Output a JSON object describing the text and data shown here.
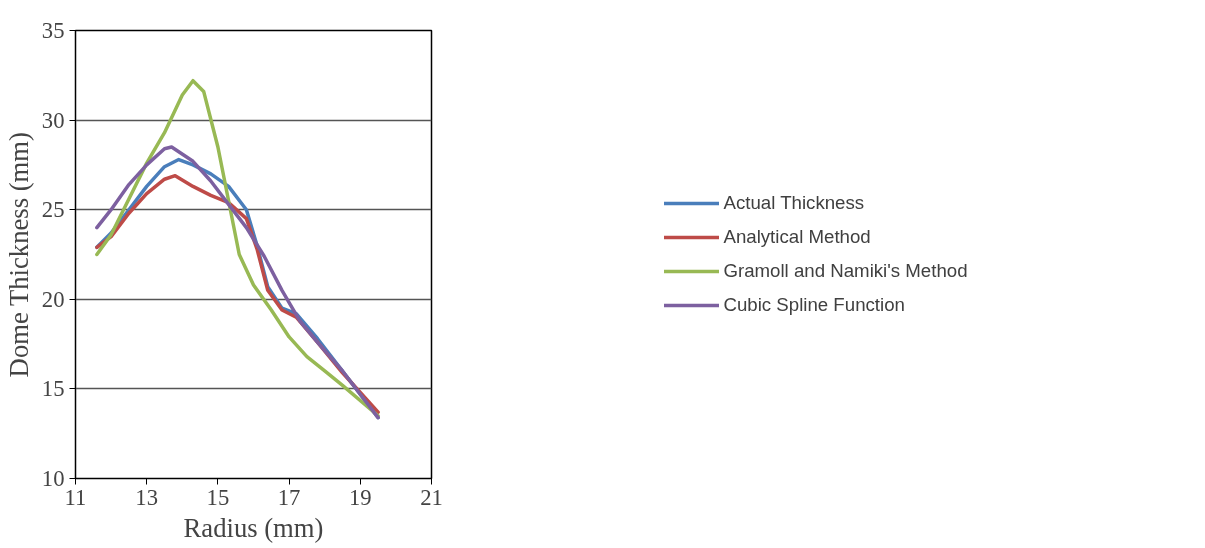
{
  "chart_data": {
    "type": "line",
    "xlabel": "Radius (mm)",
    "ylabel": "Dome Thickness (mm)",
    "xlim": [
      11,
      21
    ],
    "xticks": [
      11,
      13,
      15,
      17,
      19,
      21
    ],
    "ylim": [
      10,
      35
    ],
    "yticks": [
      10,
      15,
      20,
      25,
      30,
      35
    ],
    "grid": "y",
    "legend": "right",
    "marker": "none",
    "line_style": "solid",
    "series": [
      {
        "name": "Actual Thickness",
        "color": "#4a7ebb",
        "x": [
          11.6,
          12,
          12.5,
          13,
          13.5,
          13.9,
          14.3,
          14.8,
          15.3,
          15.8,
          16.1,
          16.4,
          16.8,
          17.2,
          17.8,
          18.5,
          19.5
        ],
        "values": [
          22.9,
          23.7,
          25,
          26.3,
          27.4,
          27.8,
          27.5,
          27,
          26.3,
          25,
          23,
          20.7,
          19.5,
          19.2,
          17.8,
          16,
          13.4
        ]
      },
      {
        "name": "Analytical Method",
        "color": "#be4b48",
        "x": [
          11.6,
          12,
          12.5,
          13,
          13.5,
          13.8,
          14.3,
          14.8,
          15.3,
          15.8,
          16.1,
          16.4,
          16.8,
          17.2,
          17.8,
          18.5,
          19.5
        ],
        "values": [
          22.9,
          23.5,
          24.8,
          25.9,
          26.7,
          26.9,
          26.3,
          25.8,
          25.4,
          24.5,
          22.8,
          20.5,
          19.4,
          19,
          17.6,
          15.9,
          13.7
        ]
      },
      {
        "name": "Gramoll and Namiki's Method",
        "color": "#98b954",
        "x": [
          11.6,
          12,
          12.5,
          13,
          13.5,
          14,
          14.3,
          14.6,
          15,
          15.3,
          15.6,
          16,
          16.5,
          17,
          17.5,
          18,
          18.5,
          19.5
        ],
        "values": [
          22.5,
          23.6,
          25.6,
          27.6,
          29.3,
          31.4,
          32.2,
          31.6,
          28.5,
          25.5,
          22.5,
          20.8,
          19.4,
          17.9,
          16.8,
          16,
          15.2,
          13.5
        ]
      },
      {
        "name": "Cubic Spline Function",
        "color": "#7d60a0",
        "x": [
          11.6,
          12,
          12.5,
          13,
          13.5,
          13.7,
          14.3,
          14.8,
          15.3,
          15.8,
          16.3,
          16.8,
          17.3,
          17.8,
          18.5,
          19.5
        ],
        "values": [
          24,
          25,
          26.4,
          27.5,
          28.4,
          28.5,
          27.7,
          26.6,
          25.3,
          24,
          22.4,
          20.5,
          18.8,
          17.6,
          16,
          13.4
        ]
      }
    ]
  }
}
